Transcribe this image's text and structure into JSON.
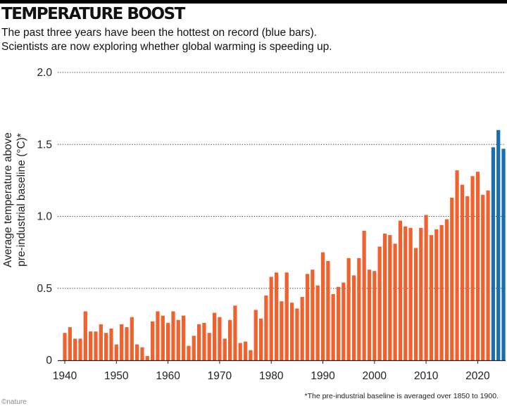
{
  "header": {
    "title": "TEMPERATURE BOOST",
    "subtitle_line1": "The past three years have been the hottest on record (blue bars).",
    "subtitle_line2": "Scientists are now exploring whether global warming is speeding up."
  },
  "footnote": "*The pre-industrial baseline is averaged over 1850 to 1900.",
  "logo_text": "©nature",
  "chart_data": {
    "type": "bar",
    "ylabel_line1": "Average temperature above",
    "ylabel_line2": "pre-industrial baseline (°C)*",
    "ylim": [
      0,
      2.0
    ],
    "yticks": [
      0,
      0.5,
      1.0,
      1.5,
      2.0
    ],
    "ytick_labels": [
      "0",
      "0.5",
      "1.0",
      "1.5",
      "2.0"
    ],
    "xticks": [
      1940,
      1950,
      1960,
      1970,
      1980,
      1990,
      2000,
      2010,
      2020
    ],
    "grid": "horizontal dotted",
    "colors": {
      "normal": "#f0612e",
      "highlight": "#1a6eb0"
    },
    "highlight_years": [
      2023,
      2024,
      2025
    ],
    "x": [
      1940,
      1941,
      1942,
      1943,
      1944,
      1945,
      1946,
      1947,
      1948,
      1949,
      1950,
      1951,
      1952,
      1953,
      1954,
      1955,
      1956,
      1957,
      1958,
      1959,
      1960,
      1961,
      1962,
      1963,
      1964,
      1965,
      1966,
      1967,
      1968,
      1969,
      1970,
      1971,
      1972,
      1973,
      1974,
      1975,
      1976,
      1977,
      1978,
      1979,
      1980,
      1981,
      1982,
      1983,
      1984,
      1985,
      1986,
      1987,
      1988,
      1989,
      1990,
      1991,
      1992,
      1993,
      1994,
      1995,
      1996,
      1997,
      1998,
      1999,
      2000,
      2001,
      2002,
      2003,
      2004,
      2005,
      2006,
      2007,
      2008,
      2009,
      2010,
      2011,
      2012,
      2013,
      2014,
      2015,
      2016,
      2017,
      2018,
      2019,
      2020,
      2021,
      2022,
      2023,
      2024,
      2025
    ],
    "values": [
      0.19,
      0.23,
      0.15,
      0.15,
      0.34,
      0.2,
      0.2,
      0.25,
      0.19,
      0.22,
      0.11,
      0.25,
      0.23,
      0.3,
      0.11,
      0.09,
      0.03,
      0.27,
      0.34,
      0.31,
      0.26,
      0.34,
      0.28,
      0.31,
      0.1,
      0.17,
      0.25,
      0.26,
      0.19,
      0.33,
      0.3,
      0.15,
      0.28,
      0.38,
      0.12,
      0.13,
      0.07,
      0.35,
      0.29,
      0.45,
      0.58,
      0.61,
      0.41,
      0.61,
      0.4,
      0.36,
      0.44,
      0.6,
      0.63,
      0.52,
      0.75,
      0.69,
      0.46,
      0.51,
      0.54,
      0.71,
      0.59,
      0.71,
      0.9,
      0.63,
      0.62,
      0.79,
      0.88,
      0.87,
      0.81,
      0.97,
      0.93,
      0.92,
      0.78,
      0.92,
      1.01,
      0.87,
      0.91,
      0.94,
      0.98,
      1.13,
      1.32,
      1.22,
      1.14,
      1.28,
      1.31,
      1.15,
      1.18,
      1.48,
      1.6,
      1.47
    ]
  }
}
